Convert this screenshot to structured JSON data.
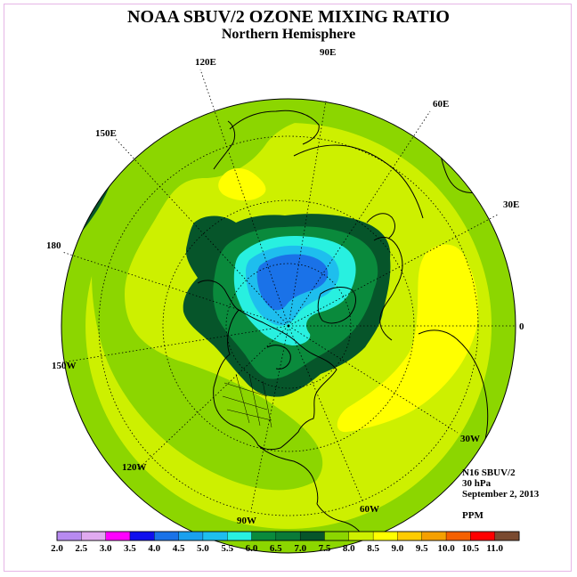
{
  "chart_data": {
    "type": "polar_contour_map",
    "title": "NOAA SBUV/2 OZONE MIXING RATIO",
    "subtitle": "Northern Hemisphere",
    "projection": "north polar stereographic",
    "parameter": "Ozone mixing ratio",
    "units": "PPM",
    "level": "30 hPa",
    "instrument": "N16 SBUV/2",
    "date": "September 2, 2013",
    "longitude_labels": [
      "90E",
      "60E",
      "30E",
      "0",
      "30W",
      "60W",
      "90W",
      "120W",
      "150W",
      "180",
      "150E",
      "120E"
    ],
    "colorbar": {
      "ticks": [
        "2.0",
        "2.5",
        "3.0",
        "3.5",
        "4.0",
        "4.5",
        "5.0",
        "5.5",
        "6.0",
        "6.5",
        "7.0",
        "7.5",
        "8.0",
        "8.5",
        "9.0",
        "9.5",
        "10.0",
        "10.5",
        "11.0"
      ],
      "colors": [
        "#b78af0",
        "#e0aaf0",
        "#ff00ff",
        "#1010ee",
        "#1a72e8",
        "#1aa0ee",
        "#1ebeee",
        "#28f0e0",
        "#0a8a3c",
        "#0a7a38",
        "#06552a",
        "#8cd600",
        "#cdf000",
        "#ffff00",
        "#ffcc00",
        "#f5a000",
        "#f56000",
        "#ff0000",
        "#7a4a30"
      ]
    },
    "fields": {
      "background_range_ppm": [
        7.5,
        8.5
      ],
      "polar_minimum_range_ppm": [
        4.5,
        5.0
      ],
      "maximum_regions_ppm": [
        8.0,
        8.5
      ]
    }
  },
  "info": {
    "instrument": "N16 SBUV/2",
    "level": "30 hPa",
    "date": "September 2, 2013",
    "units": "PPM"
  },
  "colors": {
    "frame": "#e6b6e6",
    "ocean_lines": "#000000"
  }
}
